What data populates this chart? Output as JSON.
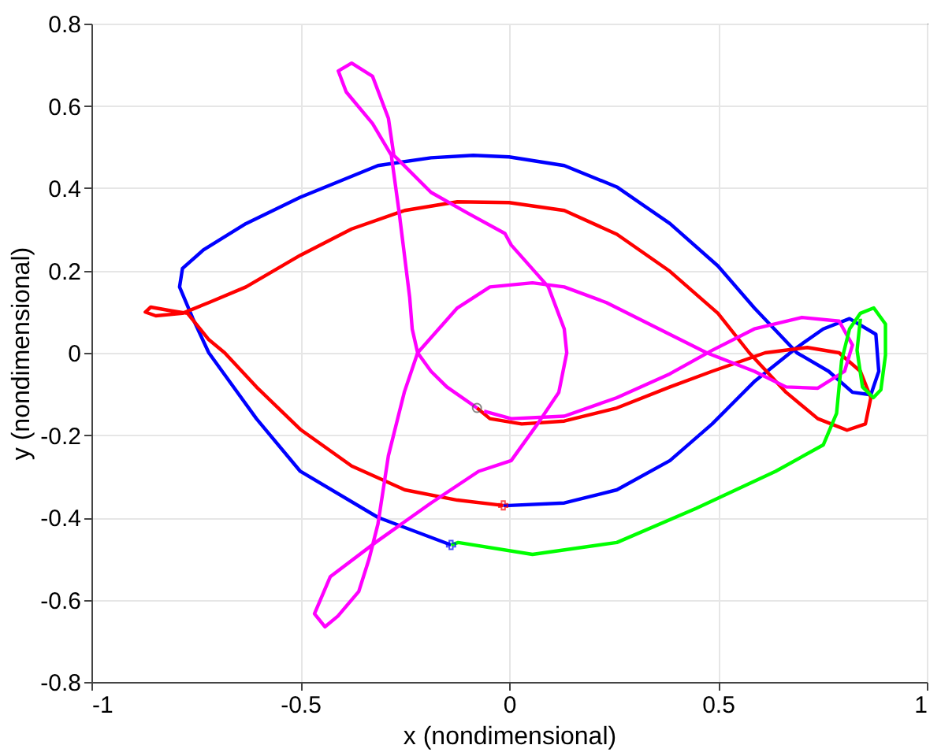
{
  "chart_data": {
    "type": "line",
    "xlabel": "x (nondimensional)",
    "ylabel": "y (nondimensional)",
    "xlim": [
      -1,
      1
    ],
    "ylim": [
      -0.8,
      0.8
    ],
    "xticks": [
      -1,
      -0.5,
      0,
      0.5,
      1
    ],
    "yticks": [
      -0.8,
      -0.6,
      -0.4,
      -0.2,
      0,
      0.2,
      0.4,
      0.6,
      0.8
    ],
    "grid": true,
    "line_style": "solid",
    "marker": "none",
    "series": [
      {
        "color": "#0000ff",
        "x": [
          -0.139,
          -0.314,
          -0.5,
          -0.605,
          -0.719,
          -0.757,
          -0.789,
          -0.782,
          -0.732,
          -0.63,
          -0.5,
          -0.314,
          -0.187,
          -0.086,
          0,
          0.132,
          0.258,
          0.385,
          0.5,
          0.587,
          0.689,
          0.765,
          0.822,
          0.866,
          0.885,
          0.878,
          0.815,
          0.752,
          0.689,
          0.587,
          0.486,
          0.385,
          0.258,
          0.132,
          0,
          -0.014
        ],
        "values": [
          -0.467,
          -0.4,
          -0.288,
          -0.16,
          0,
          0.083,
          0.16,
          0.205,
          0.25,
          0.314,
          0.378,
          0.455,
          0.474,
          0.48,
          0.476,
          0.455,
          0.403,
          0.314,
          0.211,
          0.109,
          0,
          -0.045,
          -0.096,
          -0.102,
          -0.045,
          0.045,
          0.083,
          0.058,
          0.013,
          -0.07,
          -0.173,
          -0.262,
          -0.333,
          -0.365,
          -0.371,
          -0.371
        ]
      },
      {
        "color": "#ff0000",
        "x": [
          -0.014,
          -0.124,
          -0.25,
          -0.377,
          -0.5,
          -0.605,
          -0.681,
          -0.719,
          -0.77,
          -0.808,
          -0.858,
          -0.871,
          -0.846,
          -0.782,
          -0.719,
          -0.63,
          -0.5,
          -0.377,
          -0.25,
          -0.124,
          0,
          0.132,
          0.258,
          0.385,
          0.5,
          0.575,
          0.663,
          0.739,
          0.809,
          0.853,
          0.866,
          0.841,
          0.79,
          0.714,
          0.613,
          0.486,
          0.385,
          0.258,
          0.132,
          0.03,
          -0.046,
          -0.077
        ],
        "values": [
          -0.371,
          -0.358,
          -0.333,
          -0.275,
          -0.186,
          -0.083,
          0,
          0.032,
          0.096,
          0.102,
          0.111,
          0.099,
          0.09,
          0.096,
          0.122,
          0.16,
          0.237,
          0.301,
          0.346,
          0.367,
          0.365,
          0.346,
          0.288,
          0.198,
          0.096,
          0,
          -0.096,
          -0.16,
          -0.188,
          -0.173,
          -0.109,
          -0.045,
          0,
          0.013,
          0,
          -0.045,
          -0.083,
          -0.134,
          -0.166,
          -0.173,
          -0.16,
          -0.134
        ]
      },
      {
        "color": "#ff00ff",
        "x": [
          -0.077,
          -0.149,
          -0.187,
          -0.219,
          -0.232,
          -0.238,
          -0.263,
          -0.282,
          -0.327,
          -0.39,
          -0.409,
          -0.377,
          -0.327,
          -0.289,
          -0.276,
          -0.187,
          -0.1,
          -0.01,
          0.005,
          0.094,
          0.132,
          0.138,
          0.119,
          0.068,
          0.005,
          -0.073,
          -0.187,
          -0.32,
          -0.428,
          -0.466,
          -0.441,
          -0.41,
          -0.36,
          -0.335,
          -0.314,
          -0.289,
          -0.251,
          -0.219,
          -0.124,
          -0.046,
          0.056,
          0.132,
          0.233,
          0.359,
          0.473,
          0.587,
          0.663,
          0.739,
          0.803,
          0.822,
          0.79,
          0.701,
          0.587,
          0.486,
          0.385,
          0.258,
          0.132,
          0.005,
          -0.06
        ],
        "values": [
          -0.134,
          -0.083,
          -0.045,
          0,
          0.058,
          0.134,
          0.339,
          0.48,
          0.557,
          0.634,
          0.685,
          0.704,
          0.672,
          0.57,
          0.48,
          0.39,
          0.34,
          0.29,
          0.262,
          0.16,
          0.058,
          0,
          -0.096,
          -0.173,
          -0.262,
          -0.288,
          -0.365,
          -0.461,
          -0.544,
          -0.634,
          -0.666,
          -0.64,
          -0.58,
          -0.5,
          -0.416,
          -0.25,
          -0.096,
          0,
          0.109,
          0.16,
          0.17,
          0.16,
          0.122,
          0.058,
          0,
          -0.045,
          -0.083,
          -0.086,
          -0.045,
          0.019,
          0.077,
          0.086,
          0.058,
          0.006,
          -0.051,
          -0.109,
          -0.154,
          -0.16,
          -0.142
        ]
      },
      {
        "color": "#00ff00",
        "x": [
          -0.139,
          -0.122,
          0.056,
          0.258,
          0.448,
          0.638,
          0.752,
          0.784,
          0.796,
          0.815,
          0.841,
          0.873,
          0.901,
          0.901,
          0.89,
          0.872,
          0.846,
          0.833,
          0.841
        ],
        "values": [
          -0.467,
          -0.461,
          -0.49,
          -0.461,
          -0.378,
          -0.288,
          -0.224,
          -0.147,
          -0.019,
          0.058,
          0.096,
          0.109,
          0.07,
          -0.006,
          -0.09,
          -0.109,
          -0.083,
          0.006,
          0.083
        ]
      },
      {
        "type": "scatter",
        "marker": "circle",
        "color": "#555555",
        "x": [
          -0.077
        ],
        "values": [
          -0.134
        ]
      },
      {
        "type": "scatter",
        "marker": "cross",
        "color": "#0000ff",
        "x": [
          -0.139
        ],
        "values": [
          -0.467
        ]
      },
      {
        "type": "scatter",
        "marker": "cross",
        "color": "#ff0000",
        "x": [
          -0.014
        ],
        "values": [
          -0.371
        ]
      }
    ]
  }
}
